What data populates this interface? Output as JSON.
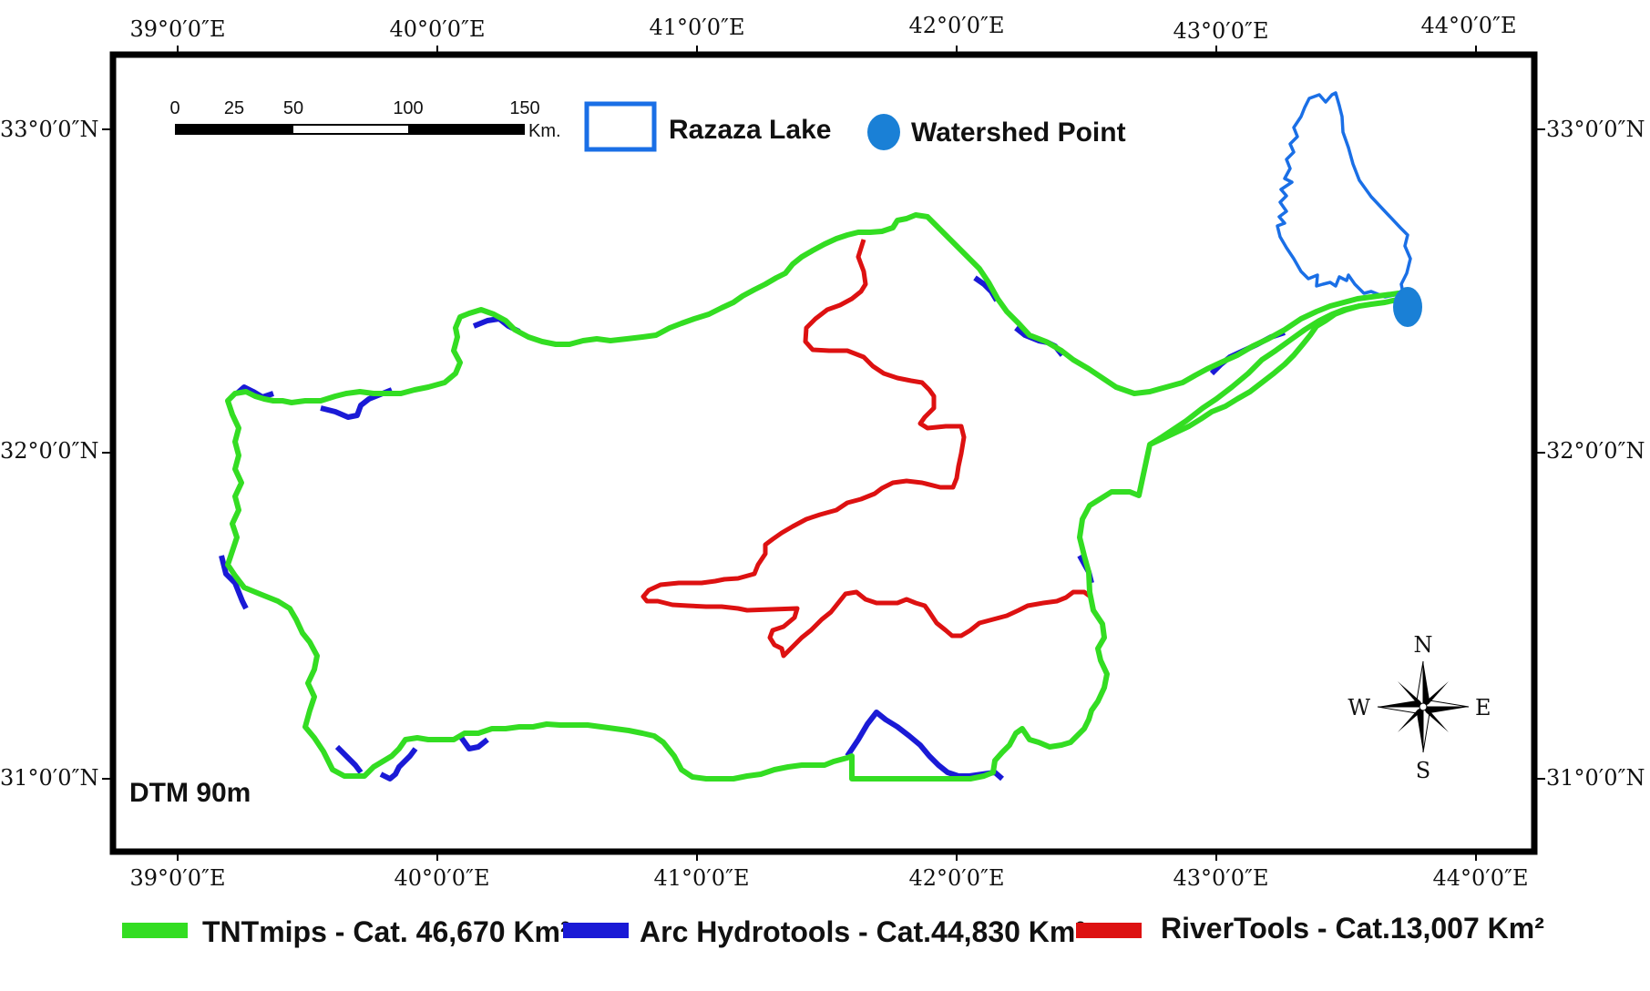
{
  "map": {
    "lon_labels": [
      "39°0′0″E",
      "40°0′0″E",
      "41°0′0″E",
      "42°0′0″E",
      "43°0′0″E",
      "44°0′0″E"
    ],
    "lat_labels": [
      "33°0′0″N",
      "32°0′0″N",
      "31°0′0″N"
    ],
    "dtm_label": "DTM 90m",
    "scale_bar": {
      "ticks": [
        "0",
        "25",
        "50",
        "100",
        "150"
      ],
      "unit": "Km."
    },
    "top_legend": {
      "lake": "Razaza Lake",
      "point": "Watershed Point"
    },
    "compass": {
      "n": "N",
      "s": "S",
      "e": "E",
      "w": "W"
    },
    "bottom_legend": [
      {
        "label": "TNTmips - Cat. 46,670 Km²",
        "color": "#33dd22"
      },
      {
        "label": "Arc Hydrotools - Cat.44,830 Km²",
        "color": "#1a1ad6"
      },
      {
        "label": "RiverTools - Cat.13,007 Km²",
        "color": "#dd1111"
      }
    ],
    "colors": {
      "lake": "#1a6fe6",
      "point": "#1a80d6",
      "frame": "#000000"
    }
  }
}
